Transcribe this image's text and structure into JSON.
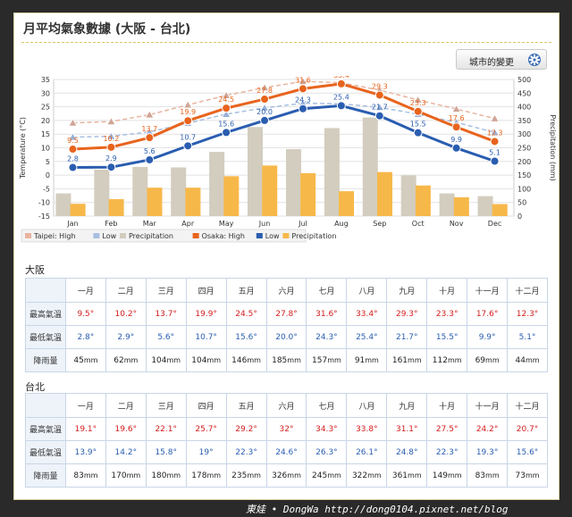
{
  "title": "月平均氣象數據 (大阪 - 台北)",
  "compare_button": {
    "label": "城市的變更",
    "icon": "gear-icon"
  },
  "legend": [
    "Taipei: High",
    "Low",
    "Precipitation",
    "Osaka: High",
    "Low",
    "Precipitation"
  ],
  "chart_data": {
    "type": "line",
    "categories": [
      "Jan",
      "Feb",
      "Mar",
      "Apr",
      "May",
      "Jun",
      "Jul",
      "Aug",
      "Sep",
      "Oct",
      "Nov",
      "Dec"
    ],
    "ylabel": "Temperature (°C)",
    "y2label": "Precipitation (mm)",
    "ylim": [
      -15,
      35
    ],
    "y_ticks": [
      35,
      30,
      25,
      20,
      15,
      10,
      5,
      0,
      -5,
      -10,
      -15
    ],
    "y2lim": [
      0,
      500
    ],
    "y2_ticks": [
      500,
      450,
      400,
      350,
      300,
      250,
      200,
      150,
      100,
      50,
      0
    ],
    "grid": true,
    "legend_position": "bottom-left",
    "series": [
      {
        "name": "Taipei: High",
        "kind": "line",
        "axis": "temp",
        "color": "#e8b4a0",
        "values": [
          19.1,
          19.6,
          22.1,
          25.7,
          29.2,
          32,
          34.3,
          33.8,
          31.1,
          27.5,
          24.2,
          20.7
        ]
      },
      {
        "name": "Low",
        "kind": "line",
        "axis": "temp",
        "color": "#a8bfe0",
        "values": [
          13.9,
          14.2,
          15.8,
          19,
          22.3,
          24.6,
          26.3,
          26.1,
          24.8,
          22.3,
          19.3,
          15.6
        ]
      },
      {
        "name": "Precipitation",
        "kind": "bar",
        "axis": "precip",
        "color": "#d3cdbf",
        "values": [
          83,
          170,
          180,
          178,
          235,
          326,
          245,
          322,
          361,
          149,
          83,
          73
        ]
      },
      {
        "name": "Osaka: High",
        "kind": "line",
        "axis": "temp",
        "color": "#e8641d",
        "values": [
          9.5,
          10.2,
          13.7,
          19.9,
          24.5,
          27.8,
          31.6,
          33.4,
          29.3,
          23.3,
          17.6,
          12.3
        ],
        "labels": [
          "9.5",
          "10.2",
          "13.7",
          "19.9",
          "24.5",
          "27.8",
          "31.6",
          "33.4",
          "29.3",
          "23.3",
          "17.6",
          "12.3"
        ]
      },
      {
        "name": "Low",
        "kind": "line",
        "axis": "temp",
        "color": "#2a5db0",
        "values": [
          2.8,
          2.9,
          5.6,
          10.7,
          15.6,
          20,
          24.3,
          25.4,
          21.7,
          15.5,
          9.9,
          5.1
        ],
        "labels": [
          "2.8",
          "2.9",
          "5.6",
          "10.7",
          "15.6",
          "20.0",
          "24.3",
          "25.4",
          "21.7",
          "15.5",
          "9.9",
          "5.1"
        ]
      },
      {
        "name": "Precipitation",
        "kind": "bar",
        "axis": "precip",
        "color": "#f7b84a",
        "values": [
          45,
          62,
          104,
          104,
          146,
          185,
          157,
          91,
          161,
          112,
          69,
          44
        ]
      }
    ]
  },
  "osaka": {
    "label": "大阪",
    "months": [
      "一月",
      "二月",
      "三月",
      "四月",
      "五月",
      "六月",
      "七月",
      "八月",
      "九月",
      "十月",
      "十一月",
      "十二月"
    ],
    "row_labels": [
      "最高氣溫",
      "最低氣溫",
      "降雨量"
    ],
    "high": [
      "9.5°",
      "10.2°",
      "13.7°",
      "19.9°",
      "24.5°",
      "27.8°",
      "31.6°",
      "33.4°",
      "29.3°",
      "23.3°",
      "17.6°",
      "12.3°"
    ],
    "low": [
      "2.8°",
      "2.9°",
      "5.6°",
      "10.7°",
      "15.6°",
      "20.0°",
      "24.3°",
      "25.4°",
      "21.7°",
      "15.5°",
      "9.9°",
      "5.1°"
    ],
    "rain": [
      "45",
      "62",
      "104",
      "104",
      "146",
      "185",
      "157",
      "91",
      "161",
      "112",
      "69",
      "44"
    ],
    "rain_unit": "mm"
  },
  "taipei": {
    "label": "台北",
    "months": [
      "一月",
      "二月",
      "三月",
      "四月",
      "五月",
      "六月",
      "七月",
      "八月",
      "九月",
      "十月",
      "十一月",
      "十二月"
    ],
    "row_labels": [
      "最高氣溫",
      "最低氣溫",
      "降雨量"
    ],
    "high": [
      "19.1°",
      "19.6°",
      "22.1°",
      "25.7°",
      "29.2°",
      "32°",
      "34.3°",
      "33.8°",
      "31.1°",
      "27.5°",
      "24.2°",
      "20.7°"
    ],
    "low": [
      "13.9°",
      "14.2°",
      "15.8°",
      "19°",
      "22.3°",
      "24.6°",
      "26.3°",
      "26.1°",
      "24.8°",
      "22.3°",
      "19.3°",
      "15.6°"
    ],
    "rain": [
      "83",
      "170",
      "180",
      "178",
      "235",
      "326",
      "245",
      "322",
      "361",
      "149",
      "83",
      "73"
    ],
    "rain_unit": "mm"
  },
  "watermark": "東娃 • DongWa http://dong0104.pixnet.net/blog"
}
